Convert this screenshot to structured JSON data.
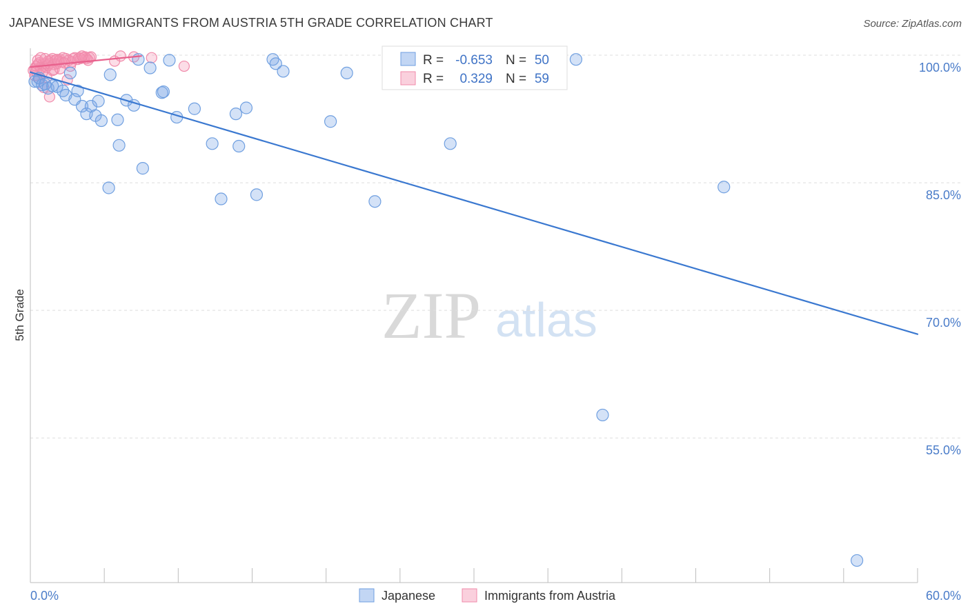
{
  "chart_data": {
    "type": "scatter",
    "title": "JAPANESE VS IMMIGRANTS FROM AUSTRIA 5TH GRADE CORRELATION CHART",
    "source": "Source: ZipAtlas.com",
    "xlabel": "",
    "ylabel": "5th Grade",
    "xlim": [
      0,
      60
    ],
    "ylim": [
      38,
      100
    ],
    "x_tick_labels": {
      "left": "0.0%",
      "right": "60.0%"
    },
    "y_ticks": [
      {
        "value": 100,
        "label": "100.0%"
      },
      {
        "value": 85,
        "label": "85.0%"
      },
      {
        "value": 70,
        "label": "70.0%"
      },
      {
        "value": 55,
        "label": "55.0%"
      }
    ],
    "watermark": {
      "zip": "ZIP",
      "atlas": "atlas"
    },
    "legend": [
      {
        "r_label": "R =",
        "r_value": "-0.653",
        "n_label": "N =",
        "n_value": "50"
      },
      {
        "r_label": "R =",
        "r_value": "0.329",
        "n_label": "N =",
        "n_value": "59"
      }
    ],
    "series": [
      {
        "name": "Japanese",
        "color": "#6f9fe0",
        "fill": "rgba(120,165,230,0.32)",
        "line_color": "#3a78d0",
        "trend": {
          "x0": 0,
          "y0": 98.0,
          "x1": 60,
          "y1": 67.2
        },
        "points": [
          [
            0.3,
            96.9
          ],
          [
            0.5,
            96.9
          ],
          [
            0.6,
            97.3
          ],
          [
            0.8,
            96.5
          ],
          [
            1.0,
            96.6
          ],
          [
            1.2,
            96.1
          ],
          [
            1.5,
            96.4
          ],
          [
            1.8,
            96.3
          ],
          [
            2.2,
            95.8
          ],
          [
            2.4,
            95.3
          ],
          [
            2.7,
            97.9
          ],
          [
            3.0,
            94.8
          ],
          [
            3.2,
            95.8
          ],
          [
            3.5,
            94.0
          ],
          [
            3.8,
            93.1
          ],
          [
            4.1,
            94.0
          ],
          [
            4.4,
            92.9
          ],
          [
            4.6,
            94.6
          ],
          [
            4.8,
            92.3
          ],
          [
            5.3,
            84.4
          ],
          [
            5.4,
            97.7
          ],
          [
            5.9,
            92.4
          ],
          [
            6.0,
            89.4
          ],
          [
            6.5,
            94.7
          ],
          [
            7.0,
            94.1
          ],
          [
            7.3,
            99.5
          ],
          [
            7.6,
            86.7
          ],
          [
            8.1,
            98.5
          ],
          [
            8.9,
            95.6
          ],
          [
            9.0,
            95.7
          ],
          [
            9.4,
            99.4
          ],
          [
            9.9,
            92.7
          ],
          [
            11.1,
            93.7
          ],
          [
            12.3,
            89.6
          ],
          [
            12.9,
            83.1
          ],
          [
            13.9,
            93.1
          ],
          [
            14.1,
            89.3
          ],
          [
            14.6,
            93.8
          ],
          [
            15.3,
            83.6
          ],
          [
            16.4,
            99.5
          ],
          [
            16.6,
            99.0
          ],
          [
            17.1,
            98.1
          ],
          [
            20.3,
            92.2
          ],
          [
            21.4,
            97.9
          ],
          [
            23.3,
            82.8
          ],
          [
            28.4,
            89.6
          ],
          [
            36.9,
            99.5
          ],
          [
            46.9,
            84.5
          ],
          [
            38.7,
            57.7
          ],
          [
            55.9,
            40.6
          ]
        ]
      },
      {
        "name": "Immigrants from Austria",
        "color": "#f08aaa",
        "fill": "rgba(245,150,180,0.32)",
        "line_color": "#e8608c",
        "trend": {
          "x0": 0,
          "y0": 98.6,
          "x1": 7.5,
          "y1": 99.9
        },
        "points": [
          [
            0.2,
            98.2
          ],
          [
            0.3,
            98.4
          ],
          [
            0.4,
            98.7
          ],
          [
            0.5,
            98.9
          ],
          [
            0.6,
            99.1
          ],
          [
            0.7,
            98.5
          ],
          [
            0.8,
            98.9
          ],
          [
            0.9,
            98.7
          ],
          [
            1.0,
            99.0
          ],
          [
            1.1,
            98.6
          ],
          [
            1.2,
            98.8
          ],
          [
            1.3,
            99.0
          ],
          [
            1.4,
            99.4
          ],
          [
            1.5,
            99.6
          ],
          [
            1.6,
            98.9
          ],
          [
            1.7,
            99.4
          ],
          [
            1.8,
            99.0
          ],
          [
            1.9,
            99.3
          ],
          [
            2.0,
            99.5
          ],
          [
            2.1,
            99.2
          ],
          [
            2.2,
            99.7
          ],
          [
            2.4,
            99.6
          ],
          [
            2.6,
            99.4
          ],
          [
            2.8,
            99.2
          ],
          [
            3.0,
            99.7
          ],
          [
            3.2,
            99.5
          ],
          [
            3.4,
            99.6
          ],
          [
            3.6,
            99.7
          ],
          [
            3.8,
            99.6
          ],
          [
            4.0,
            99.7
          ],
          [
            0.3,
            97.6
          ],
          [
            0.6,
            97.2
          ],
          [
            1.1,
            97.4
          ],
          [
            1.6,
            98.3
          ],
          [
            2.5,
            97.1
          ],
          [
            0.9,
            96.2
          ],
          [
            1.3,
            95.1
          ],
          [
            2.7,
            98.7
          ],
          [
            3.3,
            99.7
          ],
          [
            3.7,
            99.8
          ],
          [
            0.4,
            98.1
          ],
          [
            0.8,
            97.9
          ],
          [
            1.2,
            99.3
          ],
          [
            1.8,
            99.5
          ],
          [
            2.3,
            99.1
          ],
          [
            2.0,
            98.4
          ],
          [
            0.5,
            99.4
          ],
          [
            1.0,
            99.6
          ],
          [
            3.9,
            99.4
          ],
          [
            4.1,
            99.8
          ],
          [
            5.7,
            99.3
          ],
          [
            6.1,
            99.9
          ],
          [
            7.0,
            99.8
          ],
          [
            8.2,
            99.7
          ],
          [
            10.4,
            98.7
          ],
          [
            0.7,
            99.7
          ],
          [
            1.5,
            98.2
          ],
          [
            2.9,
            99.6
          ],
          [
            3.5,
            99.9
          ]
        ]
      }
    ]
  }
}
